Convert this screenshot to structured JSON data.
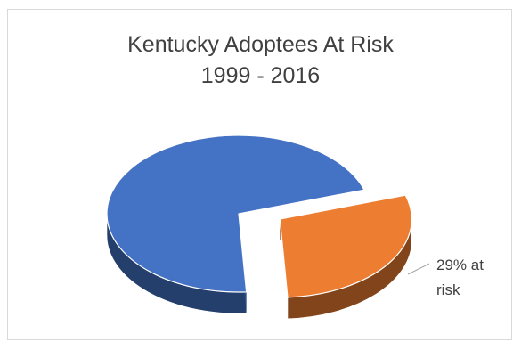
{
  "chart_data": {
    "type": "pie",
    "title": [
      "Kentucky Adoptees At Risk",
      "1999 - 2016"
    ],
    "slices": [
      {
        "label": "",
        "value": 71,
        "color": "#4472C4"
      },
      {
        "label": "29% at risk",
        "value": 29,
        "color": "#ED7D31"
      }
    ],
    "data_labels": [
      "29% at",
      "risk"
    ],
    "style": "3D exploded pie",
    "legend": "none"
  }
}
